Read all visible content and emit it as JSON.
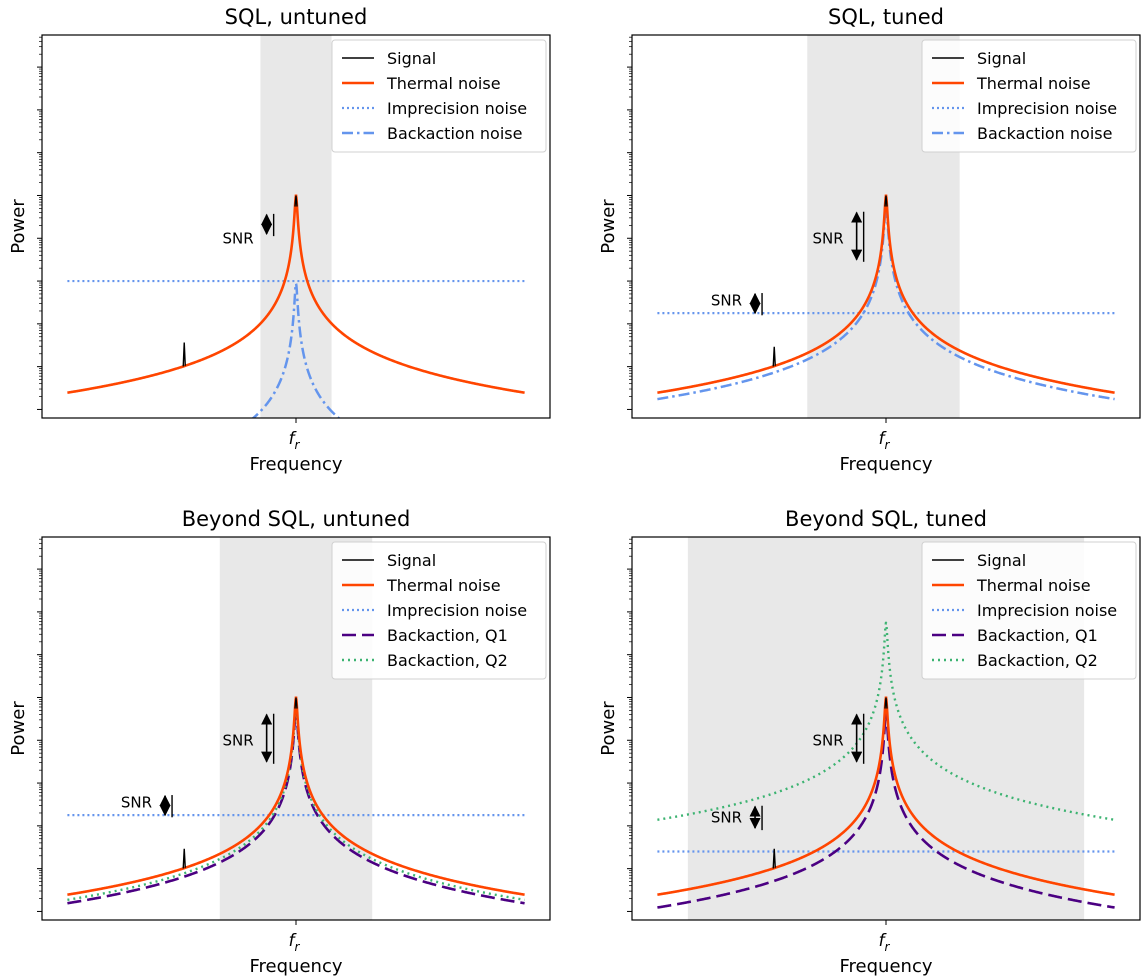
{
  "colors": {
    "signal": "#000000",
    "thermal": "#ff4500",
    "imprecision": "#6495ed",
    "backaction": "#6495ed",
    "backaction_q1": "#4b0082",
    "backaction_q2": "#3cb371",
    "band": "#e8e8e8"
  },
  "chart_data": [
    {
      "type": "line",
      "title": "SQL, untuned",
      "xlabel": "Frequency",
      "ylabel": "Power",
      "xtick_label": "f_r",
      "y_scale": "log",
      "grid": false,
      "legend_position": "top-right",
      "legend": [
        "Signal",
        "Thermal noise",
        "Imprecision noise",
        "Backaction noise"
      ],
      "band": [
        0.86,
        1.14
      ],
      "annotations": [
        {
          "text": "SNR",
          "position": "near resonance"
        }
      ]
    },
    {
      "type": "line",
      "title": "SQL, tuned",
      "xlabel": "Frequency",
      "ylabel": "Power",
      "xtick_label": "f_r",
      "y_scale": "log",
      "grid": false,
      "legend_position": "top-right",
      "legend": [
        "Signal",
        "Thermal noise",
        "Imprecision noise",
        "Backaction noise"
      ],
      "band": [
        0.69,
        1.29
      ],
      "annotations": [
        {
          "text": "SNR",
          "position": "near resonance"
        },
        {
          "text": "SNR",
          "position": "off resonance"
        }
      ]
    },
    {
      "type": "line",
      "title": "Beyond SQL, untuned",
      "xlabel": "Frequency",
      "ylabel": "Power",
      "xtick_label": "f_r",
      "y_scale": "log",
      "grid": false,
      "legend_position": "top-right",
      "legend": [
        "Signal",
        "Thermal noise",
        "Imprecision noise",
        "Backaction, Q1",
        "Backaction, Q2"
      ],
      "band": [
        0.7,
        1.3
      ],
      "annotations": [
        {
          "text": "SNR",
          "position": "near resonance"
        },
        {
          "text": "SNR",
          "position": "off resonance"
        }
      ]
    },
    {
      "type": "line",
      "title": "Beyond SQL, tuned",
      "xlabel": "Frequency",
      "ylabel": "Power",
      "xtick_label": "f_r",
      "y_scale": "log",
      "grid": false,
      "legend_position": "top-right",
      "legend": [
        "Signal",
        "Thermal noise",
        "Imprecision noise",
        "Backaction, Q1",
        "Backaction, Q2"
      ],
      "band": [
        0.22,
        1.78
      ],
      "annotations": [
        {
          "text": "SNR",
          "position": "near resonance"
        },
        {
          "text": "SNR",
          "position": "off resonance"
        }
      ]
    }
  ]
}
